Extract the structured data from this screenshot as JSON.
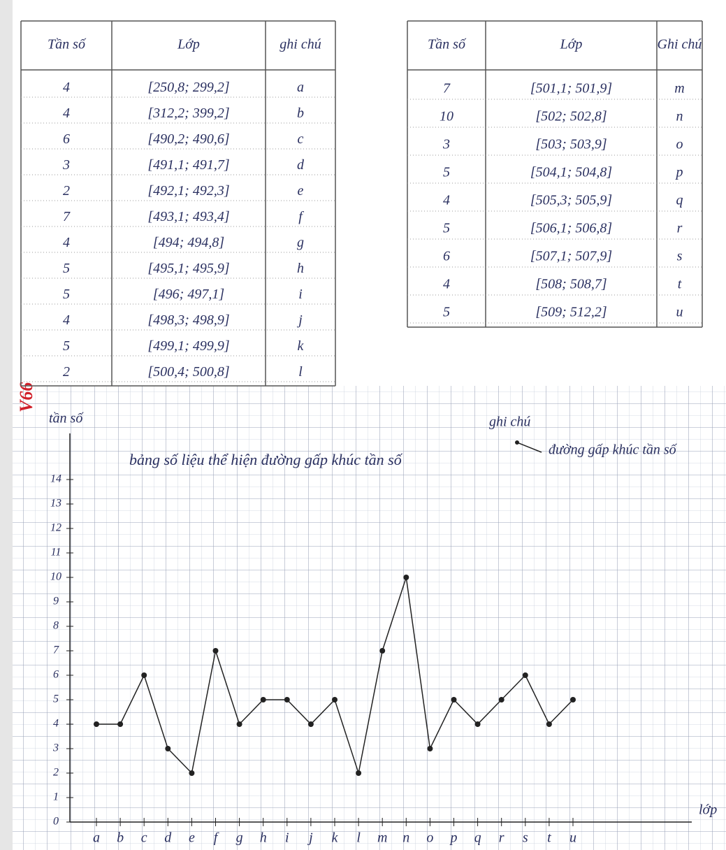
{
  "tables": [
    {
      "header": [
        "Tần số",
        "Lớp",
        "ghi chú"
      ],
      "rows": [
        [
          4,
          "[250,8; 299,2]",
          "a"
        ],
        [
          4,
          "[312,2; 399,2]",
          "b"
        ],
        [
          6,
          "[490,2; 490,6]",
          "c"
        ],
        [
          3,
          "[491,1; 491,7]",
          "d"
        ],
        [
          2,
          "[492,1; 492,3]",
          "e"
        ],
        [
          7,
          "[493,1; 493,4]",
          "f"
        ],
        [
          4,
          "[494; 494,8]",
          "g"
        ],
        [
          5,
          "[495,1; 495,9]",
          "h"
        ],
        [
          5,
          "[496; 497,1]",
          "i"
        ],
        [
          4,
          "[498,3; 498,9]",
          "j"
        ],
        [
          5,
          "[499,1; 499,9]",
          "k"
        ],
        [
          2,
          "[500,4; 500,8]",
          "l"
        ]
      ]
    },
    {
      "header": [
        "Tần số",
        "Lớp",
        "Ghi chú"
      ],
      "rows": [
        [
          7,
          "[501,1; 501,9]",
          "m"
        ],
        [
          10,
          "[502; 502,8]",
          "n"
        ],
        [
          3,
          "[503; 503,9]",
          "o"
        ],
        [
          5,
          "[504,1; 504,8]",
          "p"
        ],
        [
          4,
          "[505,3; 505,9]",
          "q"
        ],
        [
          5,
          "[506,1; 506,8]",
          "r"
        ],
        [
          6,
          "[507,1; 507,9]",
          "s"
        ],
        [
          4,
          "[508; 508,7]",
          "t"
        ],
        [
          5,
          "[509; 512,2]",
          "u"
        ]
      ]
    }
  ],
  "mark": "V66",
  "chart_data": {
    "type": "line",
    "title": "bảng số liệu thể hiện đường gấp khúc tần số",
    "x_label": "lớp",
    "y_label": "tần số",
    "legend_title": "ghi chú",
    "categories": [
      "a",
      "b",
      "c",
      "d",
      "e",
      "f",
      "g",
      "h",
      "i",
      "j",
      "k",
      "l",
      "m",
      "n",
      "o",
      "p",
      "q",
      "r",
      "s",
      "t",
      "u"
    ],
    "series": [
      {
        "name": "đường gấp khúc tần số",
        "color": "#222222",
        "values": [
          4,
          4,
          6,
          3,
          2,
          7,
          4,
          5,
          5,
          4,
          5,
          2,
          7,
          10,
          3,
          5,
          4,
          5,
          6,
          4,
          5
        ]
      }
    ],
    "ylim": [
      0,
      14
    ],
    "yticks": [
      0,
      1,
      2,
      3,
      4,
      5,
      6,
      7,
      8,
      9,
      10,
      11,
      12,
      13,
      14
    ]
  }
}
